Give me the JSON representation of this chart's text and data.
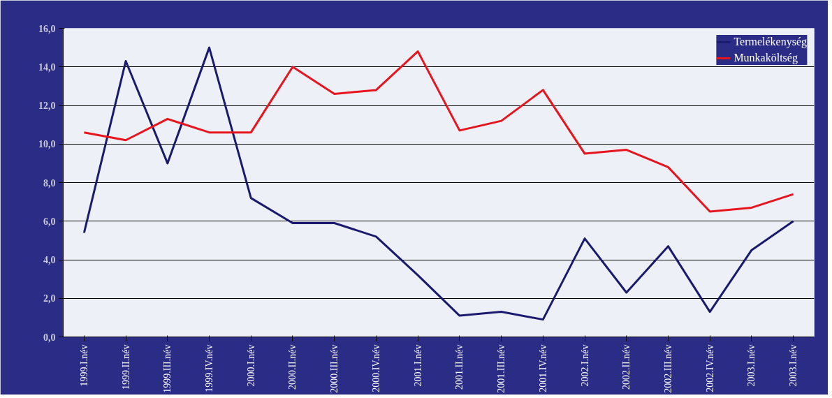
{
  "chart_data": {
    "type": "line",
    "categories": [
      "1999.I.név",
      "1999.II.név",
      "1999.III.név",
      "1999.IV.név",
      "2000.I.név",
      "2000.II.név",
      "2000.III.név",
      "2000.IV.név",
      "2001.I.név",
      "2001.II.név",
      "2001.III.név",
      "2001.IV.név",
      "2002.I.név",
      "2002.II.név",
      "2002.III.név",
      "2002.IV.név",
      "2003.I.név",
      "2003.I.név"
    ],
    "series": [
      {
        "name": "Termelékenység",
        "color": "#1a1a6e",
        "values": [
          5.4,
          14.3,
          9.0,
          15.0,
          7.2,
          5.9,
          5.9,
          5.2,
          3.2,
          1.1,
          1.3,
          0.9,
          5.1,
          2.3,
          4.7,
          1.3,
          4.5,
          6.0
        ]
      },
      {
        "name": "Munkaköltség",
        "color": "#e8141e",
        "values": [
          10.6,
          10.2,
          11.3,
          10.6,
          10.6,
          14.0,
          12.6,
          12.8,
          14.8,
          10.7,
          11.2,
          12.8,
          9.5,
          9.7,
          8.8,
          6.5,
          6.7,
          7.4
        ]
      }
    ],
    "ylim": [
      0,
      16
    ],
    "yticks": [
      {
        "value": 0,
        "label": "0,0"
      },
      {
        "value": 2,
        "label": "2,0"
      },
      {
        "value": 4,
        "label": "4,0"
      },
      {
        "value": 6,
        "label": "6,0"
      },
      {
        "value": 8,
        "label": "8,0"
      },
      {
        "value": 10,
        "label": "10,0"
      },
      {
        "value": 12,
        "label": "12,0"
      },
      {
        "value": 14,
        "label": "14,0"
      },
      {
        "value": 16,
        "label": "16,0"
      }
    ],
    "grid": "y",
    "legend": "top right",
    "marker": "none",
    "line_style": "solid"
  }
}
